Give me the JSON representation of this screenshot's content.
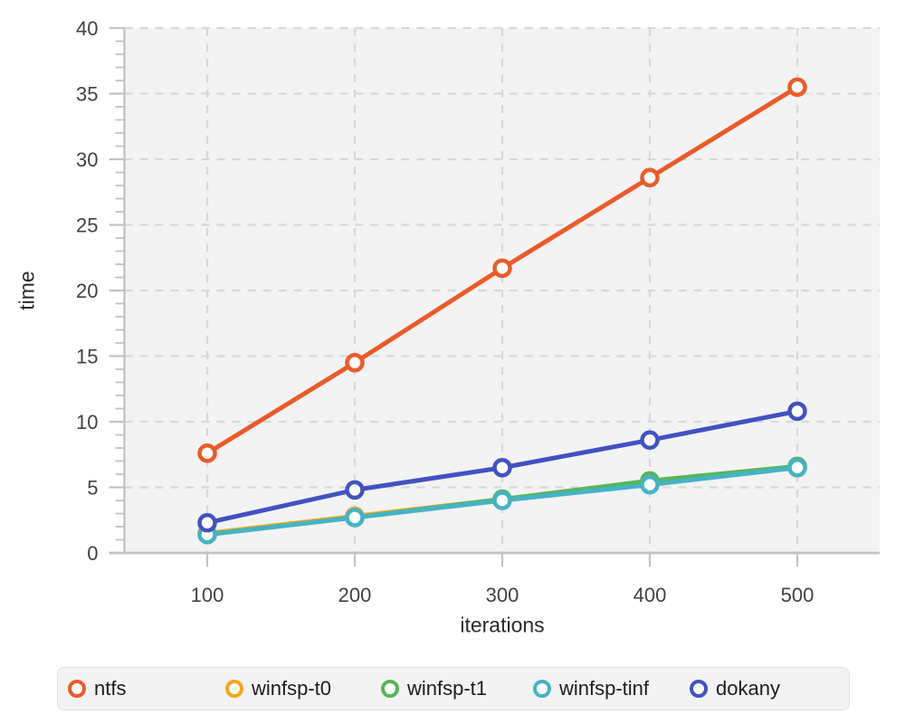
{
  "chart_data": {
    "type": "line",
    "title": "",
    "xlabel": "iterations",
    "ylabel": "time",
    "x": [
      100,
      200,
      300,
      400,
      500
    ],
    "xticks": [
      100,
      200,
      300,
      400,
      500
    ],
    "yticks": [
      0,
      5,
      10,
      15,
      20,
      25,
      30,
      35,
      40
    ],
    "ylim": [
      0,
      40
    ],
    "grid": "dashed",
    "legend_position": "bottom",
    "series": [
      {
        "name": "ntfs",
        "color": "#eb5b28",
        "values": [
          7.6,
          14.5,
          21.7,
          28.6,
          35.5
        ]
      },
      {
        "name": "winfsp-t0",
        "color": "#f5a81c",
        "values": [
          1.5,
          2.8,
          4.1,
          5.4,
          6.5
        ]
      },
      {
        "name": "winfsp-t1",
        "color": "#57b657",
        "values": [
          1.4,
          2.7,
          4.1,
          5.5,
          6.6
        ]
      },
      {
        "name": "winfsp-tinf",
        "color": "#45b3c6",
        "values": [
          1.4,
          2.7,
          4.0,
          5.2,
          6.5
        ]
      },
      {
        "name": "dokany",
        "color": "#4152c3",
        "values": [
          2.3,
          4.8,
          6.5,
          8.6,
          10.8
        ]
      }
    ],
    "style": {
      "plot_bg": "#f3f3f3",
      "grid": "#d9d9d9",
      "axis": "#c3c3c3",
      "tick_text": "#424242",
      "label_text": "#2b2b2b",
      "legend_bg": "#f3f3f3",
      "legend_border": "#e3e3e3"
    }
  }
}
